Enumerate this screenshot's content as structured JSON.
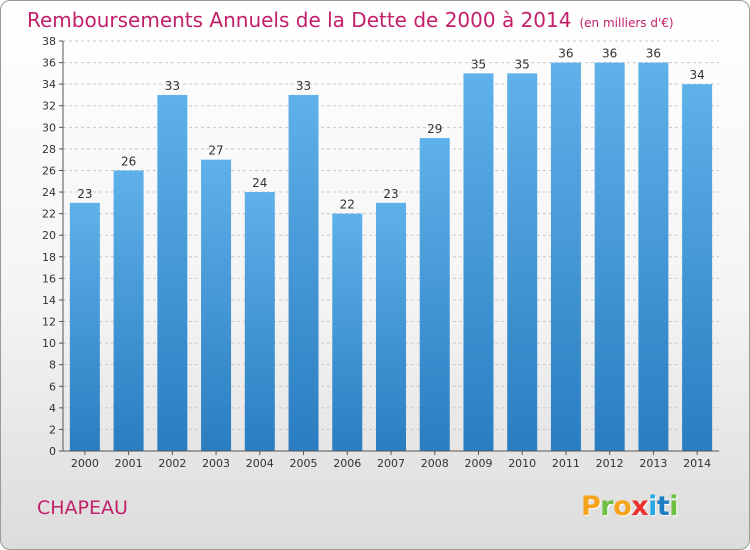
{
  "title": "Remboursements Annuels de la Dette de 2000 à 2014",
  "subtitle": "(en milliers d'€)",
  "commune": "CHAPEAU",
  "logo": {
    "letters": [
      "P",
      "r",
      "o",
      "x",
      "i",
      "t",
      "i"
    ]
  },
  "colors": {
    "title": "#c21f6a",
    "bar_top": "#5fb1ea",
    "bar_bottom": "#2a7dc0",
    "grid": "#c8c8c8",
    "axis": "#555555",
    "text": "#333333"
  },
  "chart_data": {
    "type": "bar",
    "title": "Remboursements Annuels de la Dette de 2000 à 2014",
    "subtitle": "(en milliers d'€)",
    "categories": [
      "2000",
      "2001",
      "2002",
      "2003",
      "2004",
      "2005",
      "2006",
      "2007",
      "2008",
      "2009",
      "2010",
      "2011",
      "2012",
      "2013",
      "2014"
    ],
    "values": [
      23,
      26,
      33,
      27,
      24,
      33,
      22,
      23,
      29,
      35,
      35,
      36,
      36,
      36,
      34
    ],
    "xlabel": "",
    "ylabel": "",
    "ylim": [
      0,
      38
    ],
    "ytick_step": 2,
    "grid": true,
    "data_labels": true,
    "legend": "none"
  }
}
